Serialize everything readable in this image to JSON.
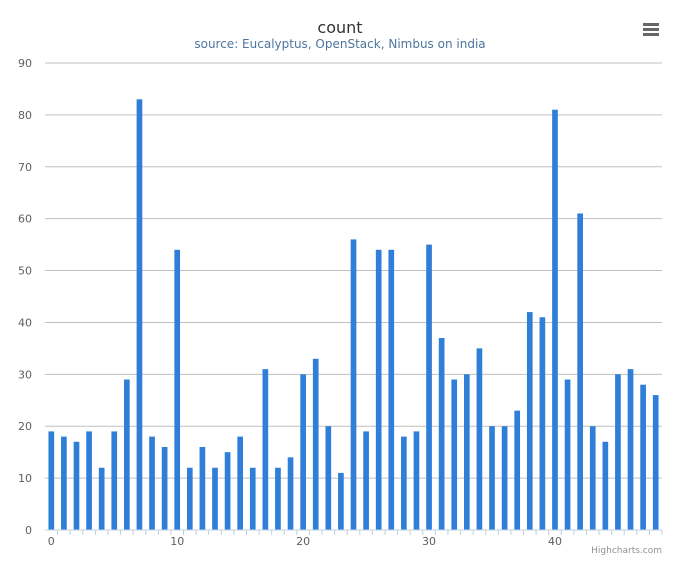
{
  "chart_data": {
    "type": "bar",
    "title": "count",
    "subtitle": "source: Eucalyptus, OpenStack, Nimbus on india",
    "xlabel": "",
    "ylabel": "",
    "x": [
      0,
      1,
      2,
      3,
      4,
      5,
      6,
      7,
      8,
      9,
      10,
      11,
      12,
      13,
      14,
      15,
      16,
      17,
      18,
      19,
      20,
      21,
      22,
      23,
      24,
      25,
      26,
      27,
      28,
      29,
      30,
      31,
      32,
      33,
      34,
      35,
      36,
      37,
      38,
      39,
      40,
      41,
      42,
      43,
      44,
      45,
      46,
      47,
      48
    ],
    "values": [
      19,
      18,
      17,
      19,
      12,
      19,
      29,
      83,
      18,
      16,
      54,
      12,
      16,
      12,
      15,
      18,
      12,
      31,
      12,
      14,
      30,
      33,
      20,
      11,
      56,
      19,
      54,
      54,
      18,
      19,
      55,
      37,
      29,
      30,
      35,
      20,
      20,
      23,
      42,
      41,
      81,
      29,
      61,
      20,
      17,
      30,
      31,
      28,
      26
    ],
    "ylim": [
      0,
      90
    ],
    "yticks": [
      0,
      10,
      20,
      30,
      40,
      50,
      60,
      70,
      80,
      90
    ],
    "xlim": [
      -0.5,
      48.5
    ],
    "xticks": [
      0,
      10,
      20,
      30,
      40
    ],
    "grid": true,
    "legend": "none",
    "bar_color": "#2f7ed8"
  },
  "credits": "Highcharts.com",
  "menu_icon": "hamburger-menu-icon"
}
